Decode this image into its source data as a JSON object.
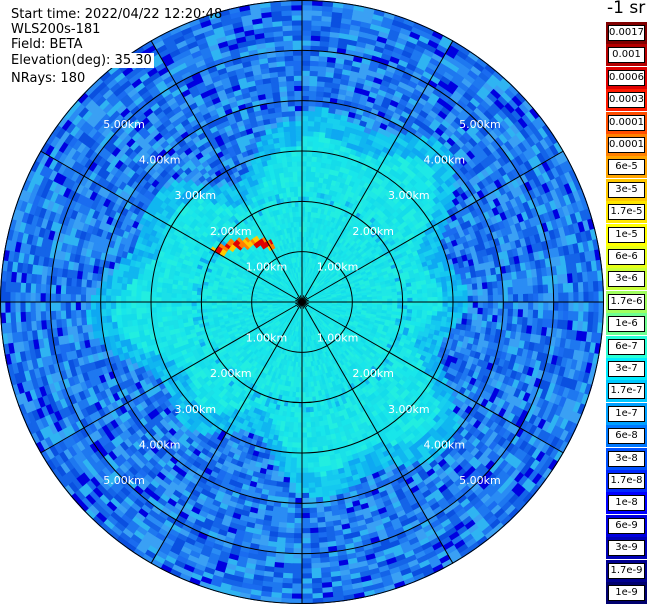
{
  "header": {
    "start_time": "Start time: 2022/04/22 12:20:48",
    "instrument": "WLS200s-181",
    "field": "Field: BETA",
    "elevation": "Elevation(deg): 35.30",
    "nrays": "NRays: 180"
  },
  "colorbar": {
    "units": "-1 sr",
    "labels": [
      "0.0017",
      "0.001",
      "0.0006",
      "0.0003",
      "0.00017",
      "0.0001",
      "6e-5",
      "3e-5",
      "1.7e-5",
      "1e-5",
      "6e-6",
      "3e-6",
      "1.7e-6",
      "1e-6",
      "6e-7",
      "3e-7",
      "1.7e-7",
      "1e-7",
      "6e-8",
      "3e-8",
      "1.7e-8",
      "1e-8",
      "6e-9",
      "3e-9",
      "1.7e-9",
      "1e-9"
    ],
    "colors": [
      "#800000",
      "#b40000",
      "#e00000",
      "#ff1a00",
      "#ff4d00",
      "#ff8000",
      "#ffa500",
      "#ffc800",
      "#ffe600",
      "#ffff00",
      "#e6ff19",
      "#c8ff37",
      "#a0ff5f",
      "#6eff91",
      "#28ffd7",
      "#00ebff",
      "#00c8ff",
      "#00a0ff",
      "#0078ff",
      "#0050ff",
      "#0028ff",
      "#0000ff",
      "#0000e0",
      "#0000b4",
      "#000090",
      "#00006e"
    ]
  },
  "chart_data": {
    "type": "heatmap",
    "projection": "polar PPI (plan position indicator)",
    "field": "BETA",
    "units": "-1 sr",
    "nrays": 180,
    "elevation_deg": 35.3,
    "range_rings_km": [
      1.0,
      2.0,
      3.0,
      4.0,
      5.0
    ],
    "radial_spokes_deg": [
      0,
      30,
      60,
      90,
      120,
      150,
      180,
      210,
      240,
      270,
      300,
      330
    ],
    "ring_labels": [
      "1.00km",
      "2.00km",
      "3.00km",
      "4.00km",
      "5.00km"
    ],
    "max_range_km": 6.0,
    "regions": [
      {
        "range_km": [
          0.0,
          3.7
        ],
        "level": "3e-7"
      },
      {
        "range_km": [
          3.7,
          6.0
        ],
        "level": "1e-7"
      },
      {
        "azimuth_deg": [
          300,
          330
        ],
        "range_km": [
          1.1,
          2.1
        ],
        "level": "1e-4"
      }
    ],
    "colorscale": "jet, logarithmic"
  }
}
